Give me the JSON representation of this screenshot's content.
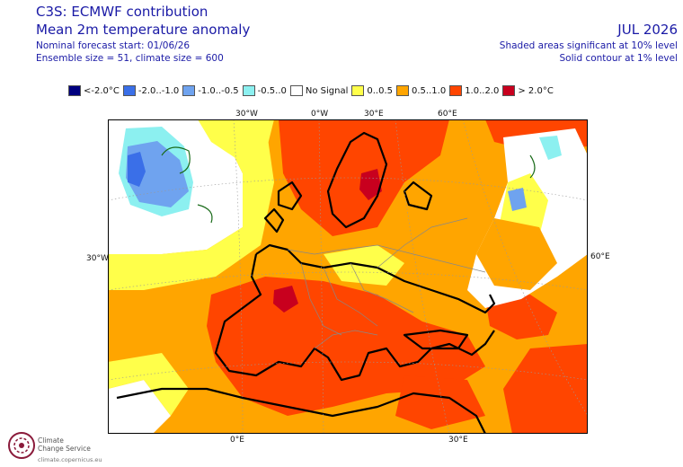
{
  "header": {
    "title_line1": "C3S: ECMWF contribution",
    "title_line2": "Mean 2m temperature anomaly",
    "forecast_start": "Nominal forecast start: 01/06/26",
    "ensemble": "Ensemble size = 51, climate size = 600",
    "month": "JUL 2026",
    "note_significance": "Shaded areas significant at 10% level",
    "note_contour": "Solid contour at 1% level"
  },
  "legend": [
    {
      "label": "<-2.0°C",
      "color": "#00007f"
    },
    {
      "label": "-2.0..-1.0",
      "color": "#3a6fe8"
    },
    {
      "label": "-1.0..-0.5",
      "color": "#6fa3ef"
    },
    {
      "label": "-0.5..0",
      "color": "#8cf0f0"
    },
    {
      "label": "No Signal",
      "color": "#ffffff"
    },
    {
      "label": "0..0.5",
      "color": "#ffff4a"
    },
    {
      "label": "0.5..1.0",
      "color": "#ffa500"
    },
    {
      "label": "1.0..2.0",
      "color": "#ff4500"
    },
    {
      "label": "> 2.0°C",
      "color": "#c8001e"
    }
  ],
  "map": {
    "tick_labels": {
      "top": [
        "30°W",
        "0°W",
        "30°E",
        "60°E"
      ],
      "left": [
        "30°W"
      ],
      "right": [
        "60°E"
      ],
      "bottom": [
        "0°E",
        "30°E"
      ]
    }
  },
  "footer": {
    "logo_line1": "Climate",
    "logo_line2": "Change Service",
    "logo_url": "climate.copernicus.eu"
  }
}
